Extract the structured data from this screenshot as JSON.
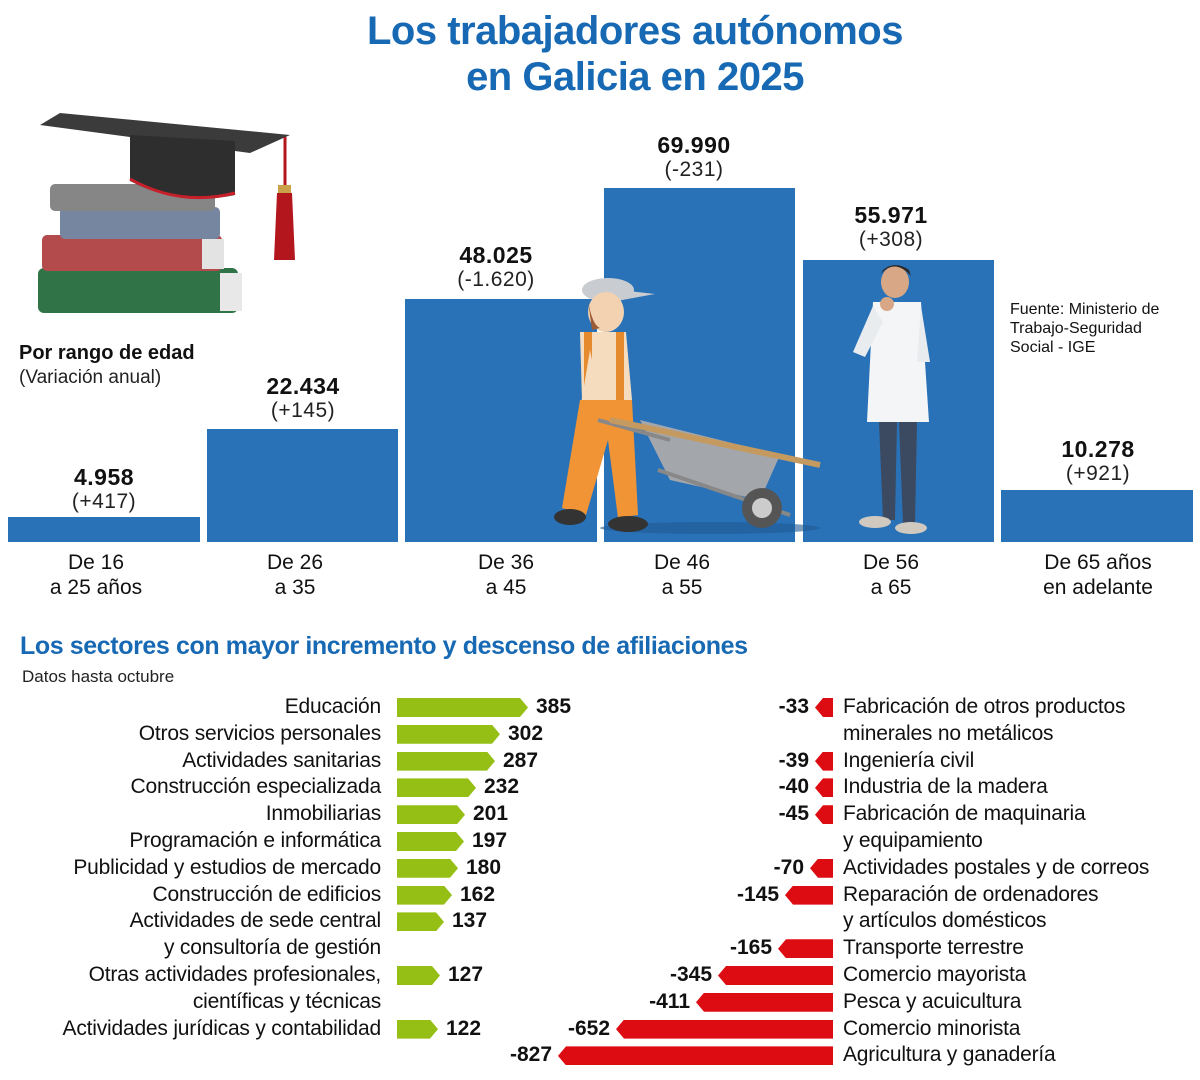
{
  "header": {
    "title_line1": "Los trabajadores autónomos",
    "title_line2": "en Galicia en 2025"
  },
  "age_section": {
    "legend_title": "Por rango de edad",
    "legend_subtitle": "(Variación anual)",
    "source": "Fuente: Ministerio de Trabajo-Seguridad Social - IGE",
    "bars": [
      {
        "value": "4.958",
        "variation": "(+417)",
        "label_line1": "De 16",
        "label_line2": "a 25 años"
      },
      {
        "value": "22.434",
        "variation": "(+145)",
        "label_line1": "De 26",
        "label_line2": "a 35"
      },
      {
        "value": "48.025",
        "variation": "(-1.620)",
        "label_line1": "De 36",
        "label_line2": "a 45"
      },
      {
        "value": "69.990",
        "variation": "(-231)",
        "label_line1": "De 46",
        "label_line2": "a 55"
      },
      {
        "value": "55.971",
        "variation": "(+308)",
        "label_line1": "De 56",
        "label_line2": "a 65"
      },
      {
        "value": "10.278",
        "variation": "(+921)",
        "label_line1": "De 65 años",
        "label_line2": "en adelante"
      }
    ],
    "illustrations": [
      "graduation-cap-books",
      "worker-wheelbarrow",
      "doctor"
    ]
  },
  "sectors_section": {
    "title": "Los sectores con mayor incremento y descenso de afiliaciones",
    "subtitle": "Datos hasta octubre",
    "increases": [
      {
        "label_lines": [
          "Educación"
        ],
        "value": "385"
      },
      {
        "label_lines": [
          "Otros servicios personales"
        ],
        "value": "302"
      },
      {
        "label_lines": [
          "Actividades sanitarias"
        ],
        "value": "287"
      },
      {
        "label_lines": [
          "Construcción especializada"
        ],
        "value": "232"
      },
      {
        "label_lines": [
          "Inmobiliarias"
        ],
        "value": "201"
      },
      {
        "label_lines": [
          "Programación e informática"
        ],
        "value": "197"
      },
      {
        "label_lines": [
          "Publicidad y estudios de mercado"
        ],
        "value": "180"
      },
      {
        "label_lines": [
          "Construcción de edificios"
        ],
        "value": "162"
      },
      {
        "label_lines": [
          "Actividades de sede central",
          "y consultoría de gestión"
        ],
        "value": "137"
      },
      {
        "label_lines": [
          "Otras actividades profesionales,",
          "científicas y técnicas"
        ],
        "value": "127"
      },
      {
        "label_lines": [
          "Actividades jurídicas y contabilidad"
        ],
        "value": "122"
      }
    ],
    "decreases": [
      {
        "label_lines": [
          "Fabricación de otros productos",
          "minerales no metálicos"
        ],
        "value": "-33"
      },
      {
        "label_lines": [
          "Ingeniería civil"
        ],
        "value": "-39"
      },
      {
        "label_lines": [
          "Industria de la madera"
        ],
        "value": "-40"
      },
      {
        "label_lines": [
          "Fabricación de maquinaria",
          "y equipamiento"
        ],
        "value": "-45"
      },
      {
        "label_lines": [
          "Actividades postales y de correos"
        ],
        "value": "-70"
      },
      {
        "label_lines": [
          "Reparación de ordenadores",
          "y artículos domésticos"
        ],
        "value": "-145"
      },
      {
        "label_lines": [
          "Transporte terrestre"
        ],
        "value": "-165"
      },
      {
        "label_lines": [
          "Comercio mayorista"
        ],
        "value": "-345"
      },
      {
        "label_lines": [
          "Pesca y acuicultura"
        ],
        "value": "-411"
      },
      {
        "label_lines": [
          "Comercio minorista"
        ],
        "value": "-652"
      },
      {
        "label_lines": [
          "Agricultura y ganadería"
        ],
        "value": "-827"
      }
    ]
  },
  "colors": {
    "title_blue": "#1769b3",
    "bar_blue": "#2a72b7",
    "increase_green": "#96bf16",
    "decrease_red": "#dd0b12"
  },
  "chart_data": [
    {
      "type": "bar",
      "title": "Los trabajadores autónomos en Galicia en 2025 — Por rango de edad (Variación anual)",
      "categories": [
        "De 16 a 25 años",
        "De 26 a 35",
        "De 36 a 45",
        "De 46 a 55",
        "De 56 a 65",
        "De 65 años en adelante"
      ],
      "series": [
        {
          "name": "Trabajadores autónomos",
          "values": [
            4958,
            22434,
            48025,
            69990,
            55971,
            10278
          ]
        },
        {
          "name": "Variación anual",
          "values": [
            417,
            145,
            -1620,
            -231,
            308,
            921
          ]
        }
      ],
      "xlabel": "",
      "ylabel": "",
      "grid": false,
      "source": "Fuente: Ministerio de Trabajo-Seguridad Social - IGE"
    },
    {
      "type": "bar",
      "orientation": "horizontal",
      "title": "Los sectores con mayor incremento y descenso de afiliaciones",
      "subtitle": "Datos hasta octubre",
      "series": [
        {
          "name": "Incremento",
          "categories": [
            "Educación",
            "Otros servicios personales",
            "Actividades sanitarias",
            "Construcción especializada",
            "Inmobiliarias",
            "Programación e informática",
            "Publicidad y estudios de mercado",
            "Construcción de edificios",
            "Actividades de sede central y consultoría de gestión",
            "Otras actividades profesionales, científicas y técnicas",
            "Actividades jurídicas y contabilidad"
          ],
          "values": [
            385,
            302,
            287,
            232,
            201,
            197,
            180,
            162,
            137,
            127,
            122
          ]
        },
        {
          "name": "Descenso",
          "categories": [
            "Fabricación de otros productos minerales no metálicos",
            "Ingeniería civil",
            "Industria de la madera",
            "Fabricación de maquinaria y equipamiento",
            "Actividades postales y de correos",
            "Reparación de ordenadores y artículos domésticos",
            "Transporte terrestre",
            "Comercio mayorista",
            "Pesca y acuicultura",
            "Comercio minorista",
            "Agricultura y ganadería"
          ],
          "values": [
            -33,
            -39,
            -40,
            -45,
            -70,
            -145,
            -165,
            -345,
            -411,
            -652,
            -827
          ]
        }
      ]
    }
  ]
}
